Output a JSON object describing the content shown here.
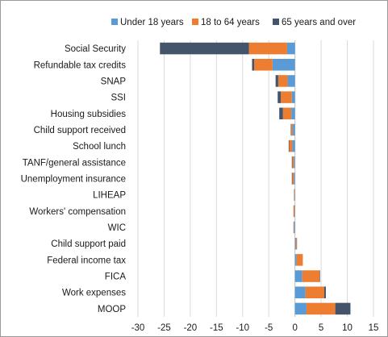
{
  "chart_data": {
    "type": "bar",
    "orientation": "horizontal",
    "stacked": true,
    "categories": [
      "Social Security",
      "Refundable tax credits",
      "SNAP",
      "SSI",
      "Housing subsidies",
      "Child support received",
      "School lunch",
      "TANF/general assistance",
      "Unemployment insurance",
      "LIHEAP",
      "Workers' compensation",
      "WIC",
      "Child support paid",
      "Federal income tax",
      "FICA",
      "Work expenses",
      "MOOP"
    ],
    "series": [
      {
        "name": "Under 18 years",
        "color": "#5b9bd5",
        "values": [
          -1.5,
          -4.3,
          -1.4,
          -0.6,
          -0.7,
          -0.4,
          -0.5,
          -0.2,
          -0.2,
          -0.1,
          -0.1,
          -0.2,
          0.2,
          0.3,
          1.4,
          2.0,
          2.2
        ]
      },
      {
        "name": "18 to 64 years",
        "color": "#ed7d31",
        "values": [
          -7.3,
          -3.5,
          -1.8,
          -2.1,
          -1.6,
          -0.3,
          -0.6,
          -0.3,
          -0.3,
          -0.1,
          -0.2,
          -0.1,
          0.2,
          1.2,
          3.3,
          3.6,
          5.5
        ]
      },
      {
        "name": "65 years and over",
        "color": "#44546a",
        "values": [
          -17.0,
          -0.4,
          -0.5,
          -0.6,
          -0.7,
          -0.1,
          -0.1,
          -0.1,
          -0.1,
          0.0,
          0.0,
          0.0,
          0.0,
          0.0,
          0.1,
          0.3,
          2.9
        ]
      }
    ],
    "xlim": [
      -30,
      15
    ],
    "xticks": [
      -30,
      -25,
      -20,
      -15,
      -10,
      -5,
      0,
      5,
      10,
      15
    ],
    "grid": true,
    "legend_position": "top"
  }
}
